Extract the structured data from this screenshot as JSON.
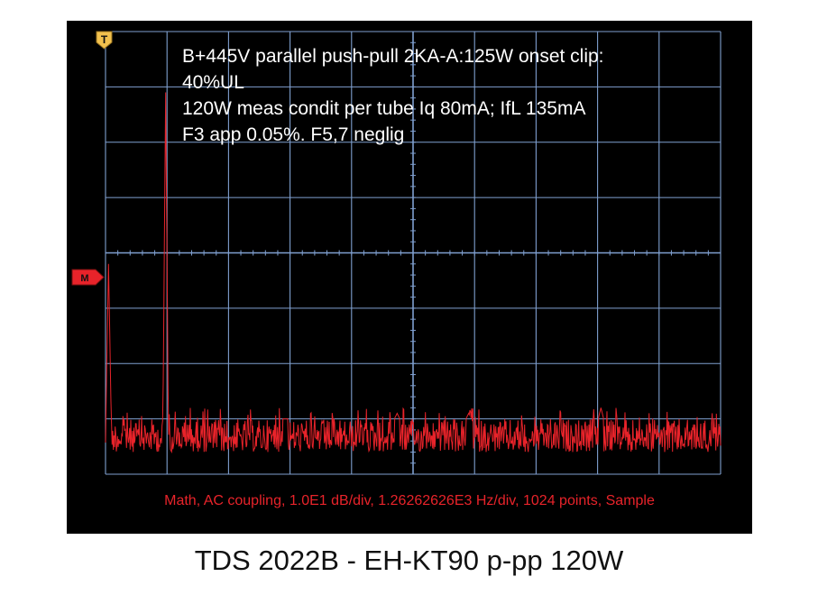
{
  "annotation": {
    "line1": "B+445V parallel push-pull 2KA-A:125W onset clip:",
    "line2": "40%UL",
    "line3": "120W meas condit per tube Iq 80mA; IfL 135mA",
    "line4": "F3 app 0.05%. F5,7 neglig"
  },
  "status_line": "Math, AC coupling, 1.0E1 dB/div, 1.26262626E3 Hz/div, 1024 points, Sample",
  "caption": "TDS 2022B - EH-KT90 p-pp 120W",
  "markers": {
    "trigger_label": "T",
    "math_label": "M"
  },
  "colors": {
    "screen_background": "#000000",
    "grid": "#7f9fcf",
    "trace": "#e8232a",
    "trigger_marker": "#f2c14e",
    "math_marker": "#e8232a",
    "annotation_text": "#ffffff"
  },
  "chart_data": {
    "type": "line",
    "title": "",
    "xlabel": "",
    "ylabel": "",
    "x_unit": "Hz",
    "x_per_div": 1262.62626,
    "y_unit": "dB",
    "y_per_div": 10,
    "grid": true,
    "divisions_x": 10,
    "divisions_y": 8,
    "xlim": [
      0,
      12626.26
    ],
    "ylim": [
      -80,
      0
    ],
    "noise_floor_db": [
      -76,
      -70
    ],
    "series": [
      {
        "peaks": [
          {
            "x": 60,
            "y": -42
          },
          {
            "x": 1230,
            "y": -11
          },
          {
            "x": 3690,
            "y": -70
          },
          {
            "x": 5980,
            "y": -69
          },
          {
            "x": 7450,
            "y": -69
          },
          {
            "x": 10170,
            "y": -68
          }
        ]
      }
    ]
  }
}
